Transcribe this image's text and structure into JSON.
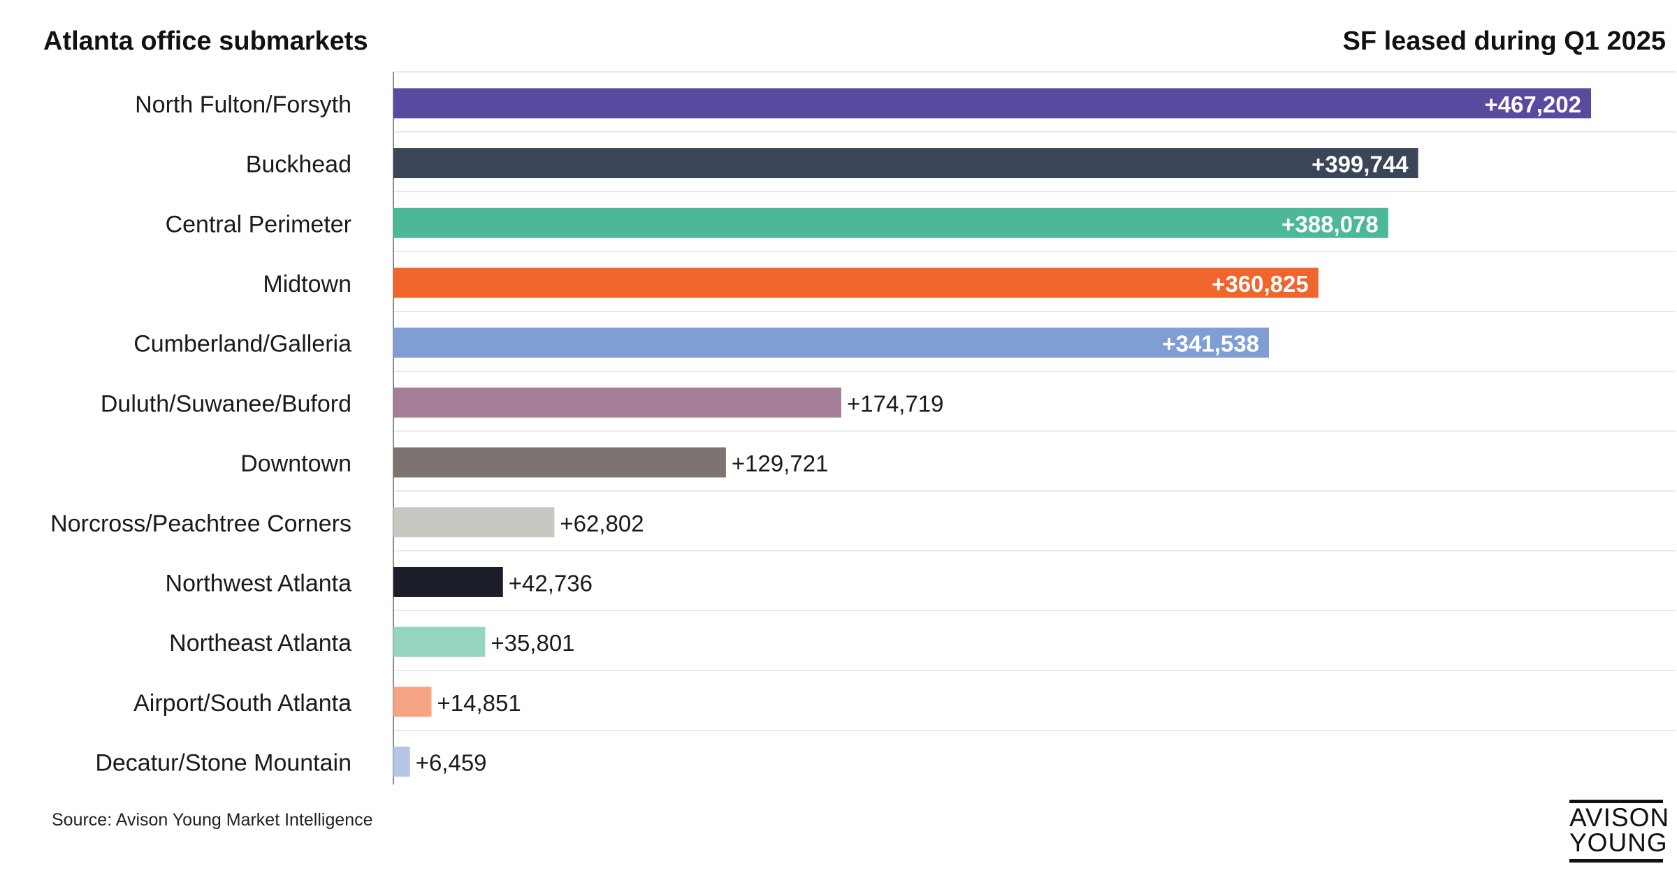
{
  "header": {
    "left_title": "Atlanta office submarkets",
    "right_title": "SF leased during Q1 2025"
  },
  "source": "Source: Avison Young Market Intelligence",
  "logo": {
    "line1": "AVISON",
    "line2": "YOUNG"
  },
  "chart_data": {
    "type": "bar",
    "orientation": "horizontal",
    "title": "",
    "xlabel": "",
    "ylabel": "",
    "grid": "horizontal-lines",
    "categories": [
      "North Fulton/Forsyth",
      "Buckhead",
      "Central Perimeter",
      "Midtown",
      "Cumberland/Galleria",
      "Duluth/Suwanee/Buford",
      "Downtown",
      "Norcross/Peachtree Corners",
      "Northwest Atlanta",
      "Northeast Atlanta",
      "Airport/South Atlanta",
      "Decatur/Stone Mountain"
    ],
    "values": [
      467202,
      399744,
      388078,
      360825,
      341538,
      174719,
      129721,
      62802,
      42736,
      35801,
      14851,
      6459
    ],
    "labels": [
      "+467,202",
      "+399,744",
      "+388,078",
      "+360,825",
      "+341,538",
      "+174,719",
      "+129,721",
      "+62,802",
      "+42,736",
      "+35,801",
      "+14,851",
      "+6,459"
    ],
    "colors": [
      "#5a4a9f",
      "#3a4558",
      "#4db897",
      "#f0652b",
      "#7f9ed3",
      "#a57f98",
      "#7d7370",
      "#c8c8c3",
      "#1c1f2a",
      "#95d4c0",
      "#f6a484",
      "#b4c5e6"
    ]
  }
}
